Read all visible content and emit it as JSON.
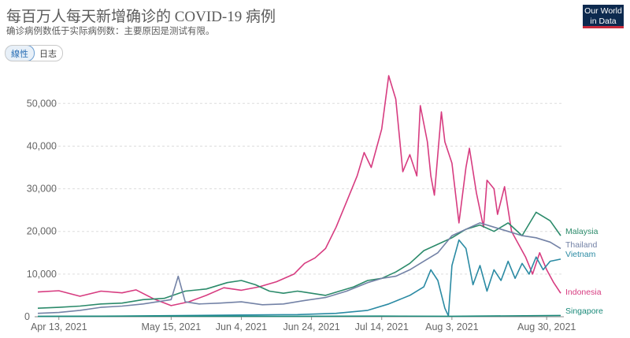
{
  "header": {
    "title": "每百万人每天新增确诊的 COVID-19 病例",
    "subtitle": "确诊病例数低于实际病例数：主要原因是测试有限。",
    "logo_line1": "Our World",
    "logo_line2": "in Data"
  },
  "controls": {
    "linear_label": "線性",
    "log_label": "日志"
  },
  "colors": {
    "Indonesia": "#d73c80",
    "Malaysia": "#2b8a6a",
    "Thailand": "#7382a6",
    "Vietnam": "#2a8aa3",
    "Singapore": "#1b8a7a"
  },
  "chart_data": {
    "type": "line",
    "title": "每百万人每天新增确诊的 COVID-19 病例",
    "subtitle": "确诊病例数低于实际病例数：主要原因是测试有限。",
    "x_ticks": [
      "Apr 13, 2021",
      "May 15, 2021",
      "Jun 4, 2021",
      "Jun 24, 2021",
      "Jul 14, 2021",
      "Aug 3, 2021",
      "Aug 30, 2021"
    ],
    "y_ticks": [
      "0",
      "10,000",
      "20,000",
      "30,000",
      "40,000",
      "50,000"
    ],
    "ylim": [
      0,
      58000
    ],
    "xlim": [
      "2021-04-07",
      "2021-09-03"
    ],
    "grid": "horizontal",
    "legend": "right end labels",
    "series": [
      {
        "name": "Indonesia",
        "points": [
          [
            "2021-04-07",
            5800
          ],
          [
            "2021-04-13",
            6100
          ],
          [
            "2021-04-19",
            4800
          ],
          [
            "2021-04-25",
            6000
          ],
          [
            "2021-05-01",
            5600
          ],
          [
            "2021-05-05",
            6300
          ],
          [
            "2021-05-10",
            4200
          ],
          [
            "2021-05-15",
            2600
          ],
          [
            "2021-05-20",
            3500
          ],
          [
            "2021-05-25",
            5000
          ],
          [
            "2021-05-30",
            6800
          ],
          [
            "2021-06-04",
            6200
          ],
          [
            "2021-06-09",
            7000
          ],
          [
            "2021-06-14",
            8200
          ],
          [
            "2021-06-19",
            10000
          ],
          [
            "2021-06-22",
            12500
          ],
          [
            "2021-06-25",
            13800
          ],
          [
            "2021-06-28",
            16000
          ],
          [
            "2021-07-01",
            21000
          ],
          [
            "2021-07-04",
            27000
          ],
          [
            "2021-07-07",
            33000
          ],
          [
            "2021-07-09",
            38500
          ],
          [
            "2021-07-11",
            35000
          ],
          [
            "2021-07-14",
            44000
          ],
          [
            "2021-07-16",
            56500
          ],
          [
            "2021-07-18",
            51000
          ],
          [
            "2021-07-20",
            34000
          ],
          [
            "2021-07-22",
            38000
          ],
          [
            "2021-07-24",
            33000
          ],
          [
            "2021-07-25",
            49500
          ],
          [
            "2021-07-27",
            41000
          ],
          [
            "2021-07-28",
            33000
          ],
          [
            "2021-07-29",
            28500
          ],
          [
            "2021-07-31",
            48000
          ],
          [
            "2021-08-01",
            41000
          ],
          [
            "2021-08-03",
            36000
          ],
          [
            "2021-08-05",
            22000
          ],
          [
            "2021-08-07",
            35000
          ],
          [
            "2021-08-08",
            39500
          ],
          [
            "2021-08-10",
            29000
          ],
          [
            "2021-08-12",
            21000
          ],
          [
            "2021-08-13",
            32000
          ],
          [
            "2021-08-15",
            30000
          ],
          [
            "2021-08-16",
            24000
          ],
          [
            "2021-08-18",
            30500
          ],
          [
            "2021-08-20",
            20000
          ],
          [
            "2021-08-22",
            17000
          ],
          [
            "2021-08-24",
            14000
          ],
          [
            "2021-08-26",
            10000
          ],
          [
            "2021-08-28",
            15000
          ],
          [
            "2021-08-30",
            11000
          ],
          [
            "2021-09-01",
            8000
          ],
          [
            "2021-09-03",
            5500
          ]
        ]
      },
      {
        "name": "Malaysia",
        "points": [
          [
            "2021-04-07",
            2000
          ],
          [
            "2021-04-13",
            2200
          ],
          [
            "2021-04-19",
            2500
          ],
          [
            "2021-04-25",
            3000
          ],
          [
            "2021-05-01",
            3200
          ],
          [
            "2021-05-07",
            4000
          ],
          [
            "2021-05-13",
            4300
          ],
          [
            "2021-05-19",
            6000
          ],
          [
            "2021-05-25",
            6500
          ],
          [
            "2021-05-31",
            8000
          ],
          [
            "2021-06-04",
            8500
          ],
          [
            "2021-06-08",
            7500
          ],
          [
            "2021-06-12",
            6000
          ],
          [
            "2021-06-16",
            5500
          ],
          [
            "2021-06-20",
            6000
          ],
          [
            "2021-06-24",
            5500
          ],
          [
            "2021-06-28",
            5000
          ],
          [
            "2021-07-02",
            6000
          ],
          [
            "2021-07-06",
            7000
          ],
          [
            "2021-07-10",
            8500
          ],
          [
            "2021-07-14",
            9000
          ],
          [
            "2021-07-18",
            10500
          ],
          [
            "2021-07-22",
            12500
          ],
          [
            "2021-07-26",
            15500
          ],
          [
            "2021-07-30",
            17000
          ],
          [
            "2021-08-03",
            18500
          ],
          [
            "2021-08-07",
            20500
          ],
          [
            "2021-08-11",
            21500
          ],
          [
            "2021-08-15",
            20000
          ],
          [
            "2021-08-19",
            22000
          ],
          [
            "2021-08-23",
            19000
          ],
          [
            "2021-08-27",
            24500
          ],
          [
            "2021-08-31",
            22500
          ],
          [
            "2021-09-03",
            19000
          ]
        ]
      },
      {
        "name": "Thailand",
        "points": [
          [
            "2021-04-07",
            800
          ],
          [
            "2021-04-13",
            1000
          ],
          [
            "2021-04-19",
            1500
          ],
          [
            "2021-04-25",
            2200
          ],
          [
            "2021-05-01",
            2500
          ],
          [
            "2021-05-07",
            3000
          ],
          [
            "2021-05-11",
            3500
          ],
          [
            "2021-05-15",
            4000
          ],
          [
            "2021-05-17",
            9500
          ],
          [
            "2021-05-19",
            3500
          ],
          [
            "2021-05-23",
            3000
          ],
          [
            "2021-05-29",
            3200
          ],
          [
            "2021-06-04",
            3500
          ],
          [
            "2021-06-10",
            2800
          ],
          [
            "2021-06-16",
            3000
          ],
          [
            "2021-06-22",
            3800
          ],
          [
            "2021-06-28",
            4500
          ],
          [
            "2021-07-04",
            6000
          ],
          [
            "2021-07-10",
            8000
          ],
          [
            "2021-07-14",
            9000
          ],
          [
            "2021-07-18",
            9500
          ],
          [
            "2021-07-22",
            11000
          ],
          [
            "2021-07-26",
            13000
          ],
          [
            "2021-07-30",
            15000
          ],
          [
            "2021-08-03",
            19000
          ],
          [
            "2021-08-07",
            20500
          ],
          [
            "2021-08-11",
            22000
          ],
          [
            "2021-08-15",
            21000
          ],
          [
            "2021-08-19",
            20000
          ],
          [
            "2021-08-23",
            19000
          ],
          [
            "2021-08-27",
            18500
          ],
          [
            "2021-08-31",
            17500
          ],
          [
            "2021-09-03",
            16000
          ]
        ]
      },
      {
        "name": "Vietnam",
        "points": [
          [
            "2021-04-07",
            100
          ],
          [
            "2021-05-01",
            150
          ],
          [
            "2021-05-20",
            300
          ],
          [
            "2021-06-04",
            400
          ],
          [
            "2021-06-20",
            500
          ],
          [
            "2021-07-01",
            800
          ],
          [
            "2021-07-10",
            1500
          ],
          [
            "2021-07-16",
            3000
          ],
          [
            "2021-07-22",
            5000
          ],
          [
            "2021-07-26",
            7000
          ],
          [
            "2021-07-28",
            11000
          ],
          [
            "2021-07-30",
            8500
          ],
          [
            "2021-08-01",
            2000
          ],
          [
            "2021-08-02",
            200
          ],
          [
            "2021-08-03",
            12000
          ],
          [
            "2021-08-05",
            18000
          ],
          [
            "2021-08-07",
            16000
          ],
          [
            "2021-08-09",
            7500
          ],
          [
            "2021-08-11",
            12000
          ],
          [
            "2021-08-13",
            6000
          ],
          [
            "2021-08-15",
            11000
          ],
          [
            "2021-08-17",
            8500
          ],
          [
            "2021-08-19",
            13000
          ],
          [
            "2021-08-21",
            9000
          ],
          [
            "2021-08-23",
            12500
          ],
          [
            "2021-08-25",
            10000
          ],
          [
            "2021-08-27",
            14000
          ],
          [
            "2021-08-29",
            11000
          ],
          [
            "2021-08-31",
            13000
          ],
          [
            "2021-09-03",
            13500
          ]
        ]
      },
      {
        "name": "Singapore",
        "points": [
          [
            "2021-04-07",
            100
          ],
          [
            "2021-05-15",
            150
          ],
          [
            "2021-06-15",
            100
          ],
          [
            "2021-07-14",
            150
          ],
          [
            "2021-08-03",
            120
          ],
          [
            "2021-08-30",
            250
          ],
          [
            "2021-09-03",
            300
          ]
        ]
      }
    ]
  }
}
